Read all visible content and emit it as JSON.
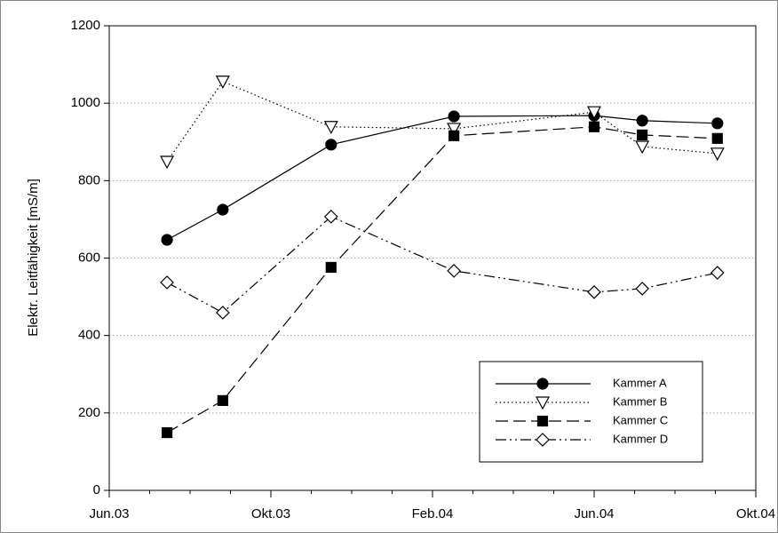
{
  "chart_data": {
    "type": "line",
    "ylabel": "Elektr. Leitfähigkeit [mS/m]",
    "xlim": [
      0,
      16
    ],
    "xticks": [
      {
        "value": 0,
        "label": "Jun.03"
      },
      {
        "value": 4,
        "label": "Okt.03"
      },
      {
        "value": 8,
        "label": "Feb.04"
      },
      {
        "value": 12,
        "label": "Jun.04"
      },
      {
        "value": 16,
        "label": "Okt.04"
      }
    ],
    "ylim": [
      0,
      1200
    ],
    "yticks": [
      0,
      200,
      400,
      600,
      800,
      1000,
      1200
    ],
    "grid": true,
    "legend": "lower right",
    "x": [
      1.43,
      2.81,
      5.49,
      8.53,
      12.0,
      13.19,
      15.05
    ],
    "series": [
      {
        "name": "Kammer A",
        "color": "#000000",
        "marker": "circle",
        "filled": true,
        "dash": "solid",
        "values": [
          647,
          725,
          893,
          966,
          968,
          955,
          948
        ]
      },
      {
        "name": "Kammer B",
        "color": "#000000",
        "marker": "triangle-down",
        "filled": false,
        "dash": "dotted",
        "values": [
          849,
          1056,
          939,
          934,
          977,
          888,
          870
        ]
      },
      {
        "name": "Kammer C",
        "color": "#000000",
        "marker": "square",
        "filled": true,
        "dash": "dashed",
        "values": [
          149,
          232,
          576,
          916,
          939,
          918,
          909
        ]
      },
      {
        "name": "Kammer D",
        "color": "#000000",
        "marker": "diamond",
        "filled": false,
        "dash": "dashdotdot",
        "values": [
          537,
          459,
          707,
          567,
          512,
          521,
          562
        ]
      }
    ]
  }
}
